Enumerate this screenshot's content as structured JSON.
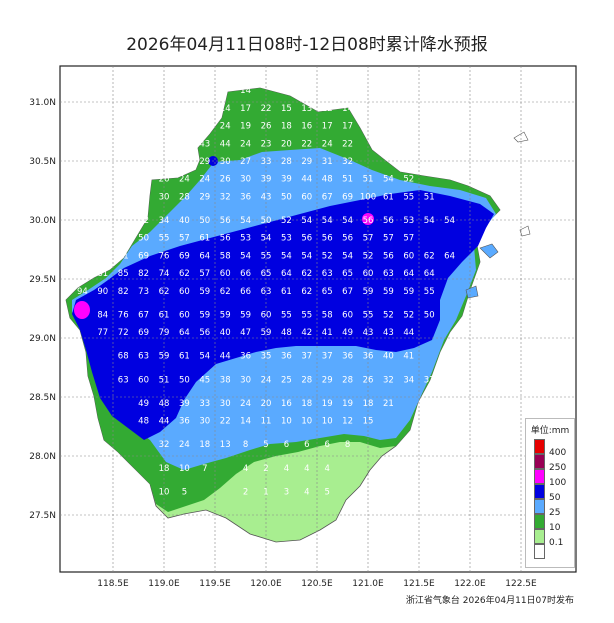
{
  "title": "2026年04月11日08时-12日08时累计降水预报",
  "footer": "浙江省气象台 2026年04月11日07时发布",
  "legend": {
    "unit_label": "单位:mm",
    "items": [
      {
        "label": "400",
        "color": "#e60000"
      },
      {
        "label": "250",
        "color": "#990055"
      },
      {
        "label": "100",
        "color": "#ff00ff"
      },
      {
        "label": "50",
        "color": "#0000e0"
      },
      {
        "label": "25",
        "color": "#5aaaff"
      },
      {
        "label": "10",
        "color": "#33aa33"
      },
      {
        "label": "0.1",
        "color": "#a8ee90"
      },
      {
        "label": "",
        "color": "#ffffff"
      }
    ]
  },
  "axes": {
    "lon_ticks": [
      "118.5E",
      "119.0E",
      "119.5E",
      "120.0E",
      "120.5E",
      "121.0E",
      "121.5E",
      "122.0E",
      "122.5E"
    ],
    "lat_ticks": [
      "31.0N",
      "30.5N",
      "30.0N",
      "29.5N",
      "29.0N",
      "28.5N",
      "28.0N",
      "27.5N"
    ]
  },
  "grid_values": [
    {
      "lon": 119.8,
      "lat": 31.1,
      "v": "14"
    },
    {
      "lon": 119.6,
      "lat": 30.95,
      "v": "14"
    },
    {
      "lon": 119.8,
      "lat": 30.95,
      "v": "17"
    },
    {
      "lon": 120.0,
      "lat": 30.95,
      "v": "22"
    },
    {
      "lon": 120.2,
      "lat": 30.95,
      "v": "15"
    },
    {
      "lon": 120.4,
      "lat": 30.95,
      "v": "13"
    },
    {
      "lon": 120.6,
      "lat": 30.95,
      "v": "12"
    },
    {
      "lon": 120.8,
      "lat": 30.95,
      "v": "14"
    },
    {
      "lon": 121.0,
      "lat": 30.95,
      "v": "16"
    },
    {
      "lon": 119.6,
      "lat": 30.8,
      "v": "24"
    },
    {
      "lon": 119.8,
      "lat": 30.8,
      "v": "19"
    },
    {
      "lon": 120.0,
      "lat": 30.8,
      "v": "26"
    },
    {
      "lon": 120.2,
      "lat": 30.8,
      "v": "18"
    },
    {
      "lon": 120.4,
      "lat": 30.8,
      "v": "16"
    },
    {
      "lon": 120.6,
      "lat": 30.8,
      "v": "17"
    },
    {
      "lon": 120.8,
      "lat": 30.8,
      "v": "17"
    },
    {
      "lon": 121.0,
      "lat": 30.8,
      "v": "18"
    },
    {
      "lon": 119.4,
      "lat": 30.65,
      "v": "43"
    },
    {
      "lon": 119.6,
      "lat": 30.65,
      "v": "44"
    },
    {
      "lon": 119.8,
      "lat": 30.65,
      "v": "24"
    },
    {
      "lon": 120.0,
      "lat": 30.65,
      "v": "23"
    },
    {
      "lon": 120.2,
      "lat": 30.65,
      "v": "20"
    },
    {
      "lon": 120.4,
      "lat": 30.65,
      "v": "22"
    },
    {
      "lon": 120.6,
      "lat": 30.65,
      "v": "24"
    },
    {
      "lon": 120.8,
      "lat": 30.65,
      "v": "22"
    },
    {
      "lon": 119.4,
      "lat": 30.5,
      "v": "29"
    },
    {
      "lon": 119.6,
      "lat": 30.5,
      "v": "30"
    },
    {
      "lon": 119.8,
      "lat": 30.5,
      "v": "27"
    },
    {
      "lon": 120.0,
      "lat": 30.5,
      "v": "33"
    },
    {
      "lon": 120.2,
      "lat": 30.5,
      "v": "28"
    },
    {
      "lon": 120.4,
      "lat": 30.5,
      "v": "29"
    },
    {
      "lon": 120.6,
      "lat": 30.5,
      "v": "31"
    },
    {
      "lon": 120.8,
      "lat": 30.5,
      "v": "32"
    },
    {
      "lon": 119.0,
      "lat": 30.35,
      "v": "26"
    },
    {
      "lon": 119.2,
      "lat": 30.35,
      "v": "24"
    },
    {
      "lon": 119.4,
      "lat": 30.35,
      "v": "24"
    },
    {
      "lon": 119.6,
      "lat": 30.35,
      "v": "26"
    },
    {
      "lon": 119.8,
      "lat": 30.35,
      "v": "30"
    },
    {
      "lon": 120.0,
      "lat": 30.35,
      "v": "39"
    },
    {
      "lon": 120.2,
      "lat": 30.35,
      "v": "39"
    },
    {
      "lon": 120.4,
      "lat": 30.35,
      "v": "44"
    },
    {
      "lon": 120.6,
      "lat": 30.35,
      "v": "48"
    },
    {
      "lon": 120.8,
      "lat": 30.35,
      "v": "51"
    },
    {
      "lon": 121.0,
      "lat": 30.35,
      "v": "51"
    },
    {
      "lon": 121.2,
      "lat": 30.35,
      "v": "54"
    },
    {
      "lon": 121.4,
      "lat": 30.35,
      "v": "52"
    },
    {
      "lon": 119.0,
      "lat": 30.2,
      "v": "30"
    },
    {
      "lon": 119.2,
      "lat": 30.2,
      "v": "28"
    },
    {
      "lon": 119.4,
      "lat": 30.2,
      "v": "29"
    },
    {
      "lon": 119.6,
      "lat": 30.2,
      "v": "32"
    },
    {
      "lon": 119.8,
      "lat": 30.2,
      "v": "36"
    },
    {
      "lon": 120.0,
      "lat": 30.2,
      "v": "43"
    },
    {
      "lon": 120.2,
      "lat": 30.2,
      "v": "50"
    },
    {
      "lon": 120.4,
      "lat": 30.2,
      "v": "60"
    },
    {
      "lon": 120.6,
      "lat": 30.2,
      "v": "67"
    },
    {
      "lon": 120.8,
      "lat": 30.2,
      "v": "69"
    },
    {
      "lon": 121.0,
      "lat": 30.2,
      "v": "100"
    },
    {
      "lon": 121.2,
      "lat": 30.2,
      "v": "61"
    },
    {
      "lon": 121.4,
      "lat": 30.2,
      "v": "55"
    },
    {
      "lon": 121.6,
      "lat": 30.2,
      "v": "51"
    },
    {
      "lon": 118.8,
      "lat": 30.0,
      "v": "32"
    },
    {
      "lon": 119.0,
      "lat": 30.0,
      "v": "34"
    },
    {
      "lon": 119.2,
      "lat": 30.0,
      "v": "40"
    },
    {
      "lon": 119.4,
      "lat": 30.0,
      "v": "50"
    },
    {
      "lon": 119.6,
      "lat": 30.0,
      "v": "56"
    },
    {
      "lon": 119.8,
      "lat": 30.0,
      "v": "54"
    },
    {
      "lon": 120.0,
      "lat": 30.0,
      "v": "50"
    },
    {
      "lon": 120.2,
      "lat": 30.0,
      "v": "52"
    },
    {
      "lon": 120.4,
      "lat": 30.0,
      "v": "54"
    },
    {
      "lon": 120.6,
      "lat": 30.0,
      "v": "54"
    },
    {
      "lon": 120.8,
      "lat": 30.0,
      "v": "54"
    },
    {
      "lon": 121.0,
      "lat": 30.0,
      "v": "56"
    },
    {
      "lon": 121.2,
      "lat": 30.0,
      "v": "56"
    },
    {
      "lon": 121.4,
      "lat": 30.0,
      "v": "53"
    },
    {
      "lon": 121.6,
      "lat": 30.0,
      "v": "54"
    },
    {
      "lon": 121.8,
      "lat": 30.0,
      "v": "54"
    },
    {
      "lon": 118.8,
      "lat": 29.85,
      "v": "50"
    },
    {
      "lon": 119.0,
      "lat": 29.85,
      "v": "55"
    },
    {
      "lon": 119.2,
      "lat": 29.85,
      "v": "57"
    },
    {
      "lon": 119.4,
      "lat": 29.85,
      "v": "61"
    },
    {
      "lon": 119.6,
      "lat": 29.85,
      "v": "56"
    },
    {
      "lon": 119.8,
      "lat": 29.85,
      "v": "53"
    },
    {
      "lon": 120.0,
      "lat": 29.85,
      "v": "54"
    },
    {
      "lon": 120.2,
      "lat": 29.85,
      "v": "53"
    },
    {
      "lon": 120.4,
      "lat": 29.85,
      "v": "56"
    },
    {
      "lon": 120.6,
      "lat": 29.85,
      "v": "56"
    },
    {
      "lon": 120.8,
      "lat": 29.85,
      "v": "56"
    },
    {
      "lon": 121.0,
      "lat": 29.85,
      "v": "57"
    },
    {
      "lon": 121.2,
      "lat": 29.85,
      "v": "57"
    },
    {
      "lon": 121.4,
      "lat": 29.85,
      "v": "57"
    },
    {
      "lon": 118.4,
      "lat": 29.7,
      "v": "53"
    },
    {
      "lon": 118.6,
      "lat": 29.7,
      "v": "61"
    },
    {
      "lon": 118.8,
      "lat": 29.7,
      "v": "69"
    },
    {
      "lon": 119.0,
      "lat": 29.7,
      "v": "76"
    },
    {
      "lon": 119.2,
      "lat": 29.7,
      "v": "69"
    },
    {
      "lon": 119.4,
      "lat": 29.7,
      "v": "64"
    },
    {
      "lon": 119.6,
      "lat": 29.7,
      "v": "58"
    },
    {
      "lon": 119.8,
      "lat": 29.7,
      "v": "54"
    },
    {
      "lon": 120.0,
      "lat": 29.7,
      "v": "55"
    },
    {
      "lon": 120.2,
      "lat": 29.7,
      "v": "54"
    },
    {
      "lon": 120.4,
      "lat": 29.7,
      "v": "54"
    },
    {
      "lon": 120.6,
      "lat": 29.7,
      "v": "52"
    },
    {
      "lon": 120.8,
      "lat": 29.7,
      "v": "54"
    },
    {
      "lon": 121.0,
      "lat": 29.7,
      "v": "52"
    },
    {
      "lon": 121.2,
      "lat": 29.7,
      "v": "56"
    },
    {
      "lon": 121.4,
      "lat": 29.7,
      "v": "60"
    },
    {
      "lon": 121.6,
      "lat": 29.7,
      "v": "62"
    },
    {
      "lon": 121.8,
      "lat": 29.7,
      "v": "64"
    },
    {
      "lon": 118.2,
      "lat": 29.55,
      "v": "118"
    },
    {
      "lon": 118.4,
      "lat": 29.55,
      "v": "81"
    },
    {
      "lon": 118.6,
      "lat": 29.55,
      "v": "85"
    },
    {
      "lon": 118.8,
      "lat": 29.55,
      "v": "82"
    },
    {
      "lon": 119.0,
      "lat": 29.55,
      "v": "74"
    },
    {
      "lon": 119.2,
      "lat": 29.55,
      "v": "62"
    },
    {
      "lon": 119.4,
      "lat": 29.55,
      "v": "57"
    },
    {
      "lon": 119.6,
      "lat": 29.55,
      "v": "60"
    },
    {
      "lon": 119.8,
      "lat": 29.55,
      "v": "66"
    },
    {
      "lon": 120.0,
      "lat": 29.55,
      "v": "65"
    },
    {
      "lon": 120.2,
      "lat": 29.55,
      "v": "64"
    },
    {
      "lon": 120.4,
      "lat": 29.55,
      "v": "62"
    },
    {
      "lon": 120.6,
      "lat": 29.55,
      "v": "63"
    },
    {
      "lon": 120.8,
      "lat": 29.55,
      "v": "65"
    },
    {
      "lon": 121.0,
      "lat": 29.55,
      "v": "60"
    },
    {
      "lon": 121.2,
      "lat": 29.55,
      "v": "63"
    },
    {
      "lon": 121.4,
      "lat": 29.55,
      "v": "64"
    },
    {
      "lon": 121.6,
      "lat": 29.55,
      "v": "64"
    },
    {
      "lon": 118.2,
      "lat": 29.4,
      "v": "94"
    },
    {
      "lon": 118.4,
      "lat": 29.4,
      "v": "90"
    },
    {
      "lon": 118.6,
      "lat": 29.4,
      "v": "82"
    },
    {
      "lon": 118.8,
      "lat": 29.4,
      "v": "73"
    },
    {
      "lon": 119.0,
      "lat": 29.4,
      "v": "62"
    },
    {
      "lon": 119.2,
      "lat": 29.4,
      "v": "60"
    },
    {
      "lon": 119.4,
      "lat": 29.4,
      "v": "59"
    },
    {
      "lon": 119.6,
      "lat": 29.4,
      "v": "62"
    },
    {
      "lon": 119.8,
      "lat": 29.4,
      "v": "66"
    },
    {
      "lon": 120.0,
      "lat": 29.4,
      "v": "63"
    },
    {
      "lon": 120.2,
      "lat": 29.4,
      "v": "61"
    },
    {
      "lon": 120.4,
      "lat": 29.4,
      "v": "62"
    },
    {
      "lon": 120.6,
      "lat": 29.4,
      "v": "65"
    },
    {
      "lon": 120.8,
      "lat": 29.4,
      "v": "67"
    },
    {
      "lon": 121.0,
      "lat": 29.4,
      "v": "59"
    },
    {
      "lon": 121.2,
      "lat": 29.4,
      "v": "59"
    },
    {
      "lon": 121.4,
      "lat": 29.4,
      "v": "59"
    },
    {
      "lon": 121.6,
      "lat": 29.4,
      "v": "55"
    },
    {
      "lon": 118.4,
      "lat": 29.2,
      "v": "84"
    },
    {
      "lon": 118.6,
      "lat": 29.2,
      "v": "76"
    },
    {
      "lon": 118.8,
      "lat": 29.2,
      "v": "67"
    },
    {
      "lon": 119.0,
      "lat": 29.2,
      "v": "61"
    },
    {
      "lon": 119.2,
      "lat": 29.2,
      "v": "60"
    },
    {
      "lon": 119.4,
      "lat": 29.2,
      "v": "59"
    },
    {
      "lon": 119.6,
      "lat": 29.2,
      "v": "59"
    },
    {
      "lon": 119.8,
      "lat": 29.2,
      "v": "59"
    },
    {
      "lon": 120.0,
      "lat": 29.2,
      "v": "60"
    },
    {
      "lon": 120.2,
      "lat": 29.2,
      "v": "55"
    },
    {
      "lon": 120.4,
      "lat": 29.2,
      "v": "55"
    },
    {
      "lon": 120.6,
      "lat": 29.2,
      "v": "58"
    },
    {
      "lon": 120.8,
      "lat": 29.2,
      "v": "60"
    },
    {
      "lon": 121.0,
      "lat": 29.2,
      "v": "55"
    },
    {
      "lon": 121.2,
      "lat": 29.2,
      "v": "52"
    },
    {
      "lon": 121.4,
      "lat": 29.2,
      "v": "52"
    },
    {
      "lon": 121.6,
      "lat": 29.2,
      "v": "50"
    },
    {
      "lon": 118.4,
      "lat": 29.05,
      "v": "77"
    },
    {
      "lon": 118.6,
      "lat": 29.05,
      "v": "72"
    },
    {
      "lon": 118.8,
      "lat": 29.05,
      "v": "69"
    },
    {
      "lon": 119.0,
      "lat": 29.05,
      "v": "79"
    },
    {
      "lon": 119.2,
      "lat": 29.05,
      "v": "64"
    },
    {
      "lon": 119.4,
      "lat": 29.05,
      "v": "56"
    },
    {
      "lon": 119.6,
      "lat": 29.05,
      "v": "40"
    },
    {
      "lon": 119.8,
      "lat": 29.05,
      "v": "47"
    },
    {
      "lon": 120.0,
      "lat": 29.05,
      "v": "59"
    },
    {
      "lon": 120.2,
      "lat": 29.05,
      "v": "48"
    },
    {
      "lon": 120.4,
      "lat": 29.05,
      "v": "42"
    },
    {
      "lon": 120.6,
      "lat": 29.05,
      "v": "41"
    },
    {
      "lon": 120.8,
      "lat": 29.05,
      "v": "49"
    },
    {
      "lon": 121.0,
      "lat": 29.05,
      "v": "43"
    },
    {
      "lon": 121.2,
      "lat": 29.05,
      "v": "43"
    },
    {
      "lon": 121.4,
      "lat": 29.05,
      "v": "44"
    },
    {
      "lon": 118.6,
      "lat": 28.85,
      "v": "68"
    },
    {
      "lon": 118.8,
      "lat": 28.85,
      "v": "63"
    },
    {
      "lon": 119.0,
      "lat": 28.85,
      "v": "59"
    },
    {
      "lon": 119.2,
      "lat": 28.85,
      "v": "61"
    },
    {
      "lon": 119.4,
      "lat": 28.85,
      "v": "54"
    },
    {
      "lon": 119.6,
      "lat": 28.85,
      "v": "44"
    },
    {
      "lon": 119.8,
      "lat": 28.85,
      "v": "36"
    },
    {
      "lon": 120.0,
      "lat": 28.85,
      "v": "35"
    },
    {
      "lon": 120.2,
      "lat": 28.85,
      "v": "36"
    },
    {
      "lon": 120.4,
      "lat": 28.85,
      "v": "37"
    },
    {
      "lon": 120.6,
      "lat": 28.85,
      "v": "37"
    },
    {
      "lon": 120.8,
      "lat": 28.85,
      "v": "36"
    },
    {
      "lon": 121.0,
      "lat": 28.85,
      "v": "36"
    },
    {
      "lon": 121.2,
      "lat": 28.85,
      "v": "40"
    },
    {
      "lon": 121.4,
      "lat": 28.85,
      "v": "41"
    },
    {
      "lon": 118.6,
      "lat": 28.65,
      "v": "63"
    },
    {
      "lon": 118.8,
      "lat": 28.65,
      "v": "60"
    },
    {
      "lon": 119.0,
      "lat": 28.65,
      "v": "51"
    },
    {
      "lon": 119.2,
      "lat": 28.65,
      "v": "50"
    },
    {
      "lon": 119.4,
      "lat": 28.65,
      "v": "45"
    },
    {
      "lon": 119.6,
      "lat": 28.65,
      "v": "38"
    },
    {
      "lon": 119.8,
      "lat": 28.65,
      "v": "30"
    },
    {
      "lon": 120.0,
      "lat": 28.65,
      "v": "24"
    },
    {
      "lon": 120.2,
      "lat": 28.65,
      "v": "25"
    },
    {
      "lon": 120.4,
      "lat": 28.65,
      "v": "28"
    },
    {
      "lon": 120.6,
      "lat": 28.65,
      "v": "29"
    },
    {
      "lon": 120.8,
      "lat": 28.65,
      "v": "28"
    },
    {
      "lon": 121.0,
      "lat": 28.65,
      "v": "26"
    },
    {
      "lon": 121.2,
      "lat": 28.65,
      "v": "32"
    },
    {
      "lon": 121.4,
      "lat": 28.65,
      "v": "34"
    },
    {
      "lon": 121.6,
      "lat": 28.65,
      "v": "37"
    },
    {
      "lon": 118.8,
      "lat": 28.45,
      "v": "49"
    },
    {
      "lon": 119.0,
      "lat": 28.45,
      "v": "48"
    },
    {
      "lon": 119.2,
      "lat": 28.45,
      "v": "39"
    },
    {
      "lon": 119.4,
      "lat": 28.45,
      "v": "33"
    },
    {
      "lon": 119.6,
      "lat": 28.45,
      "v": "30"
    },
    {
      "lon": 119.8,
      "lat": 28.45,
      "v": "24"
    },
    {
      "lon": 120.0,
      "lat": 28.45,
      "v": "20"
    },
    {
      "lon": 120.2,
      "lat": 28.45,
      "v": "16"
    },
    {
      "lon": 120.4,
      "lat": 28.45,
      "v": "18"
    },
    {
      "lon": 120.6,
      "lat": 28.45,
      "v": "19"
    },
    {
      "lon": 120.8,
      "lat": 28.45,
      "v": "19"
    },
    {
      "lon": 121.0,
      "lat": 28.45,
      "v": "18"
    },
    {
      "lon": 121.2,
      "lat": 28.45,
      "v": "21"
    },
    {
      "lon": 118.8,
      "lat": 28.3,
      "v": "48"
    },
    {
      "lon": 119.0,
      "lat": 28.3,
      "v": "44"
    },
    {
      "lon": 119.2,
      "lat": 28.3,
      "v": "36"
    },
    {
      "lon": 119.4,
      "lat": 28.3,
      "v": "30"
    },
    {
      "lon": 119.6,
      "lat": 28.3,
      "v": "22"
    },
    {
      "lon": 119.8,
      "lat": 28.3,
      "v": "14"
    },
    {
      "lon": 120.0,
      "lat": 28.3,
      "v": "11"
    },
    {
      "lon": 120.2,
      "lat": 28.3,
      "v": "10"
    },
    {
      "lon": 120.4,
      "lat": 28.3,
      "v": "10"
    },
    {
      "lon": 120.6,
      "lat": 28.3,
      "v": "10"
    },
    {
      "lon": 120.8,
      "lat": 28.3,
      "v": "12"
    },
    {
      "lon": 121.0,
      "lat": 28.3,
      "v": "15"
    },
    {
      "lon": 119.0,
      "lat": 28.1,
      "v": "32"
    },
    {
      "lon": 119.2,
      "lat": 28.1,
      "v": "24"
    },
    {
      "lon": 119.4,
      "lat": 28.1,
      "v": "18"
    },
    {
      "lon": 119.6,
      "lat": 28.1,
      "v": "13"
    },
    {
      "lon": 119.8,
      "lat": 28.1,
      "v": "8"
    },
    {
      "lon": 120.0,
      "lat": 28.1,
      "v": "5"
    },
    {
      "lon": 120.2,
      "lat": 28.1,
      "v": "6"
    },
    {
      "lon": 120.4,
      "lat": 28.1,
      "v": "6"
    },
    {
      "lon": 120.6,
      "lat": 28.1,
      "v": "6"
    },
    {
      "lon": 120.8,
      "lat": 28.1,
      "v": "8"
    },
    {
      "lon": 119.0,
      "lat": 27.9,
      "v": "18"
    },
    {
      "lon": 119.2,
      "lat": 27.9,
      "v": "10"
    },
    {
      "lon": 119.4,
      "lat": 27.9,
      "v": "7"
    },
    {
      "lon": 119.8,
      "lat": 27.9,
      "v": "4"
    },
    {
      "lon": 120.0,
      "lat": 27.9,
      "v": "2"
    },
    {
      "lon": 120.2,
      "lat": 27.9,
      "v": "4"
    },
    {
      "lon": 120.4,
      "lat": 27.9,
      "v": "4"
    },
    {
      "lon": 120.6,
      "lat": 27.9,
      "v": "4"
    },
    {
      "lon": 119.0,
      "lat": 27.7,
      "v": "10"
    },
    {
      "lon": 119.2,
      "lat": 27.7,
      "v": "5"
    },
    {
      "lon": 119.8,
      "lat": 27.7,
      "v": "2"
    },
    {
      "lon": 120.0,
      "lat": 27.7,
      "v": "1"
    },
    {
      "lon": 120.2,
      "lat": 27.7,
      "v": "3"
    },
    {
      "lon": 120.4,
      "lat": 27.7,
      "v": "4"
    },
    {
      "lon": 120.6,
      "lat": 27.7,
      "v": "5"
    }
  ]
}
